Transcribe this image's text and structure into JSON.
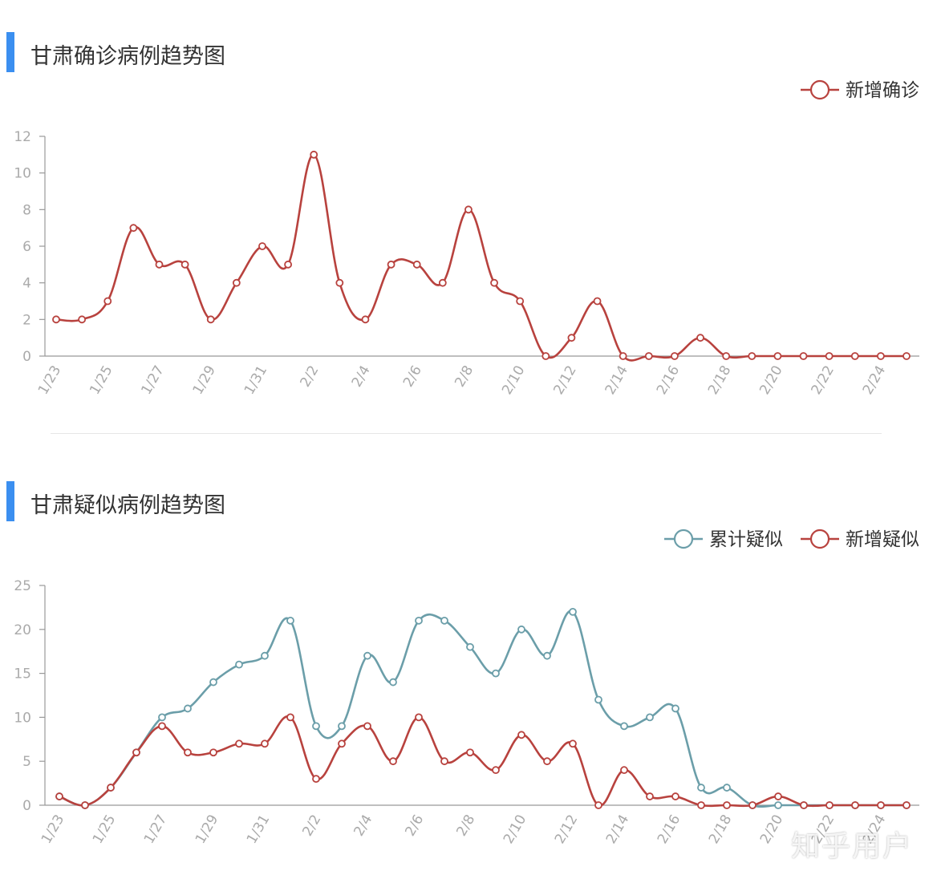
{
  "colors": {
    "accent_bar": "#3b8ff0",
    "series_red": "#b8423e",
    "series_teal": "#6b9ea9",
    "axis": "#999999",
    "tick_text": "#aaaaaa",
    "legend_text": "#333333"
  },
  "watermark": "知乎用户",
  "chart_data": [
    {
      "type": "line",
      "title": "甘肃确诊病例趋势图",
      "ylim": [
        0,
        12
      ],
      "yticks": [
        0,
        2,
        4,
        6,
        8,
        10,
        12
      ],
      "x": [
        "1/23",
        "1/24",
        "1/25",
        "1/26",
        "1/27",
        "1/28",
        "1/29",
        "1/30",
        "1/31",
        "2/1",
        "2/2",
        "2/3",
        "2/4",
        "2/5",
        "2/6",
        "2/7",
        "2/8",
        "2/9",
        "2/10",
        "2/11",
        "2/12",
        "2/13",
        "2/14",
        "2/15",
        "2/16",
        "2/17",
        "2/18",
        "2/19",
        "2/20",
        "2/21",
        "2/22",
        "2/23",
        "2/24",
        "2/25"
      ],
      "xticks": [
        "1/23",
        "1/25",
        "1/27",
        "1/29",
        "1/31",
        "2/2",
        "2/4",
        "2/6",
        "2/8",
        "2/10",
        "2/12",
        "2/14",
        "2/16",
        "2/18",
        "2/20",
        "2/22",
        "2/24"
      ],
      "legend_position": "top-right",
      "series": [
        {
          "name": "新增确诊",
          "color": "#b8423e",
          "values": [
            2,
            2,
            3,
            7,
            5,
            5,
            2,
            4,
            6,
            5,
            11,
            4,
            2,
            5,
            5,
            4,
            8,
            4,
            3,
            0,
            1,
            3,
            0,
            0,
            0,
            1,
            0,
            0,
            0,
            0,
            0,
            0,
            0,
            0
          ]
        }
      ]
    },
    {
      "type": "line",
      "title": "甘肃疑似病例趋势图",
      "ylim": [
        0,
        25
      ],
      "yticks": [
        0,
        5,
        10,
        15,
        20,
        25
      ],
      "x": [
        "1/23",
        "1/24",
        "1/25",
        "1/26",
        "1/27",
        "1/28",
        "1/29",
        "1/30",
        "1/31",
        "2/1",
        "2/2",
        "2/3",
        "2/4",
        "2/5",
        "2/6",
        "2/7",
        "2/8",
        "2/9",
        "2/10",
        "2/11",
        "2/12",
        "2/13",
        "2/14",
        "2/15",
        "2/16",
        "2/17",
        "2/18",
        "2/19",
        "2/20",
        "2/21",
        "2/22",
        "2/23",
        "2/24",
        "2/25"
      ],
      "xticks": [
        "1/23",
        "1/25",
        "1/27",
        "1/29",
        "1/31",
        "2/2",
        "2/4",
        "2/6",
        "2/8",
        "2/10",
        "2/12",
        "2/14",
        "2/16",
        "2/18",
        "2/20",
        "2/22",
        "2/24"
      ],
      "legend_position": "top-right",
      "series": [
        {
          "name": "累计疑似",
          "color": "#6b9ea9",
          "values": [
            1,
            0,
            2,
            6,
            10,
            11,
            14,
            16,
            17,
            21,
            9,
            9,
            17,
            14,
            21,
            21,
            18,
            15,
            20,
            17,
            22,
            12,
            9,
            10,
            11,
            2,
            2,
            0,
            0,
            0,
            0,
            0,
            0,
            0
          ]
        },
        {
          "name": "新增疑似",
          "color": "#b8423e",
          "values": [
            1,
            0,
            2,
            6,
            9,
            6,
            6,
            7,
            7,
            10,
            3,
            7,
            9,
            5,
            10,
            5,
            6,
            4,
            8,
            5,
            7,
            0,
            4,
            1,
            1,
            0,
            0,
            0,
            1,
            0,
            0,
            0,
            0,
            0
          ]
        }
      ]
    }
  ]
}
